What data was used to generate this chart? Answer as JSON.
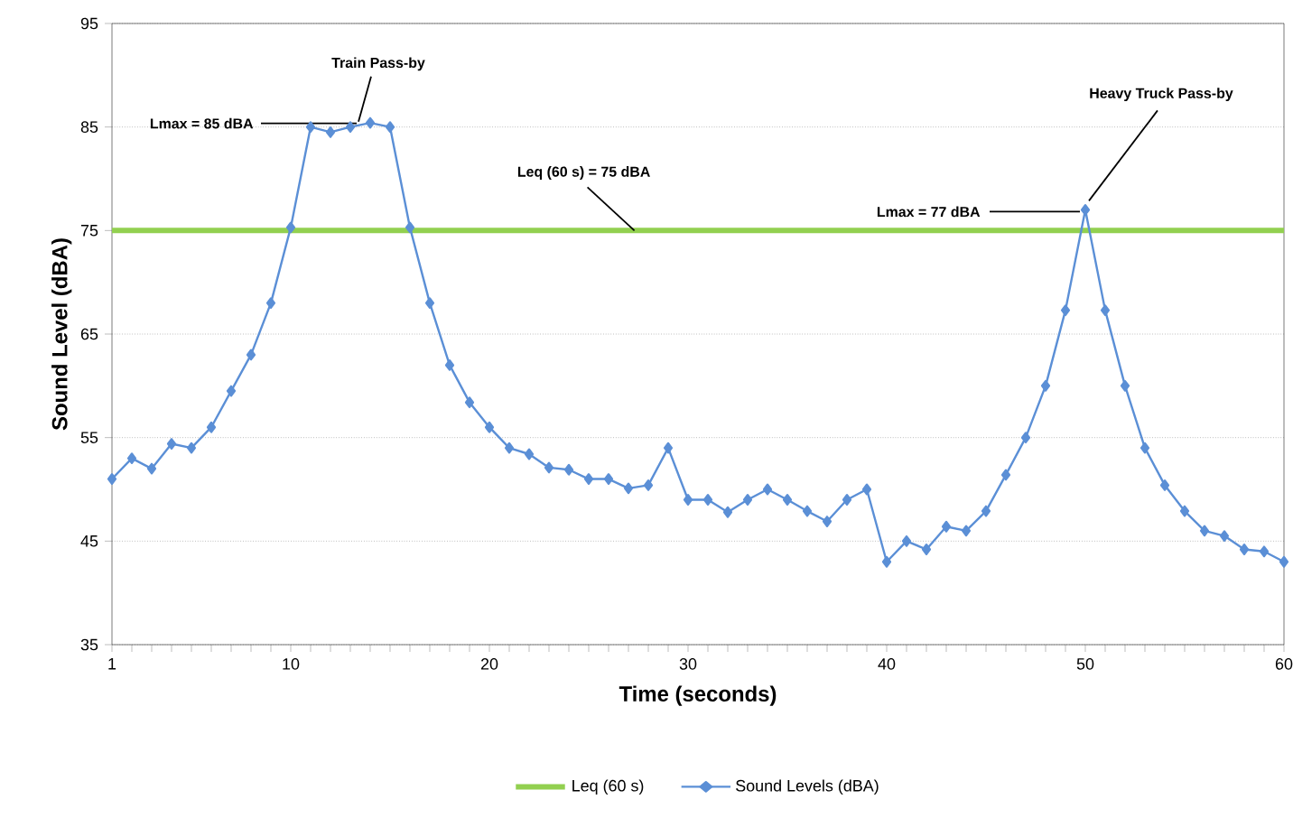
{
  "chart_data": {
    "type": "line",
    "xlabel": "Time (seconds)",
    "ylabel": "Sound Level (dBA)",
    "xlim": [
      1,
      60
    ],
    "ylim": [
      35,
      95
    ],
    "xticks": [
      1,
      {
        "value": 2,
        "label": null
      },
      {
        "value": 3,
        "label": null
      },
      {
        "value": 4,
        "label": null
      },
      {
        "value": 5,
        "label": null
      },
      {
        "value": 6,
        "label": null
      },
      {
        "value": 7,
        "label": null
      },
      {
        "value": 8,
        "label": null
      },
      {
        "value": 9,
        "label": null
      },
      10,
      {
        "value": 11,
        "label": null
      },
      {
        "value": 12,
        "label": null
      },
      {
        "value": 13,
        "label": null
      },
      {
        "value": 14,
        "label": null
      },
      {
        "value": 15,
        "label": null
      },
      {
        "value": 16,
        "label": null
      },
      {
        "value": 17,
        "label": null
      },
      {
        "value": 18,
        "label": null
      },
      {
        "value": 19,
        "label": null
      },
      20,
      {
        "value": 21,
        "label": null
      },
      {
        "value": 22,
        "label": null
      },
      {
        "value": 23,
        "label": null
      },
      {
        "value": 24,
        "label": null
      },
      {
        "value": 25,
        "label": null
      },
      {
        "value": 26,
        "label": null
      },
      {
        "value": 27,
        "label": null
      },
      {
        "value": 28,
        "label": null
      },
      {
        "value": 29,
        "label": null
      },
      30,
      {
        "value": 31,
        "label": null
      },
      {
        "value": 32,
        "label": null
      },
      {
        "value": 33,
        "label": null
      },
      {
        "value": 34,
        "label": null
      },
      {
        "value": 35,
        "label": null
      },
      {
        "value": 36,
        "label": null
      },
      {
        "value": 37,
        "label": null
      },
      {
        "value": 38,
        "label": null
      },
      {
        "value": 39,
        "label": null
      },
      40,
      {
        "value": 41,
        "label": null
      },
      {
        "value": 42,
        "label": null
      },
      {
        "value": 43,
        "label": null
      },
      {
        "value": 44,
        "label": null
      },
      {
        "value": 45,
        "label": null
      },
      {
        "value": 46,
        "label": null
      },
      {
        "value": 47,
        "label": null
      },
      {
        "value": 48,
        "label": null
      },
      {
        "value": 49,
        "label": null
      },
      50,
      {
        "value": 51,
        "label": null
      },
      {
        "value": 52,
        "label": null
      },
      {
        "value": 53,
        "label": null
      },
      {
        "value": 54,
        "label": null
      },
      {
        "value": 55,
        "label": null
      },
      {
        "value": 56,
        "label": null
      },
      {
        "value": 57,
        "label": null
      },
      {
        "value": 58,
        "label": null
      },
      {
        "value": 59,
        "label": null
      },
      60
    ],
    "yticks": [
      35,
      45,
      55,
      65,
      75,
      85,
      95
    ],
    "grid": "y",
    "legend": "bottom",
    "line_style": "solid",
    "series": [
      {
        "name": "Leq (60 s)",
        "color": "#92d050",
        "marker": "none",
        "x": [
          1,
          60
        ],
        "values": [
          75,
          75
        ]
      },
      {
        "name": "Sound Levels (dBA)",
        "color": "#5b8fd6",
        "marker": "diamond",
        "x": [
          1,
          2,
          3,
          4,
          5,
          6,
          7,
          8,
          9,
          10,
          11,
          12,
          13,
          14,
          15,
          16,
          17,
          18,
          19,
          20,
          21,
          22,
          23,
          24,
          25,
          26,
          27,
          28,
          29,
          30,
          31,
          32,
          33,
          34,
          35,
          36,
          37,
          38,
          39,
          40,
          41,
          42,
          43,
          44,
          45,
          46,
          47,
          48,
          49,
          50,
          51,
          52,
          53,
          54,
          55,
          56,
          57,
          58,
          59,
          60
        ],
        "values": [
          51,
          53,
          52,
          54.4,
          54,
          56,
          59.5,
          63,
          68,
          75.3,
          85,
          84.5,
          85,
          85.4,
          85,
          75.3,
          68,
          62,
          58.4,
          56,
          54,
          53.4,
          52.1,
          51.9,
          51,
          51,
          50.1,
          50.4,
          54,
          49,
          49,
          47.8,
          49,
          50,
          49,
          47.9,
          46.9,
          49,
          50,
          43,
          45,
          44.2,
          46.4,
          46,
          47.9,
          51.4,
          55,
          60,
          67.3,
          77,
          67.3,
          60,
          54,
          50.4,
          47.9,
          46,
          45.5,
          44.2,
          44,
          43
        ]
      }
    ],
    "annotations": [
      {
        "text": "Train Pass-by",
        "x": 13.5,
        "y": 85
      },
      {
        "text": "Lmax = 85 dBA",
        "x": 13.5,
        "y": 85
      },
      {
        "text": "Leq (60 s) = 75 dBA",
        "x": 27.3,
        "y": 75
      },
      {
        "text": "Lmax = 77 dBA",
        "x": 50,
        "y": 77
      },
      {
        "text": "Heavy Truck Pass-by",
        "x": 50,
        "y": 77
      }
    ]
  }
}
